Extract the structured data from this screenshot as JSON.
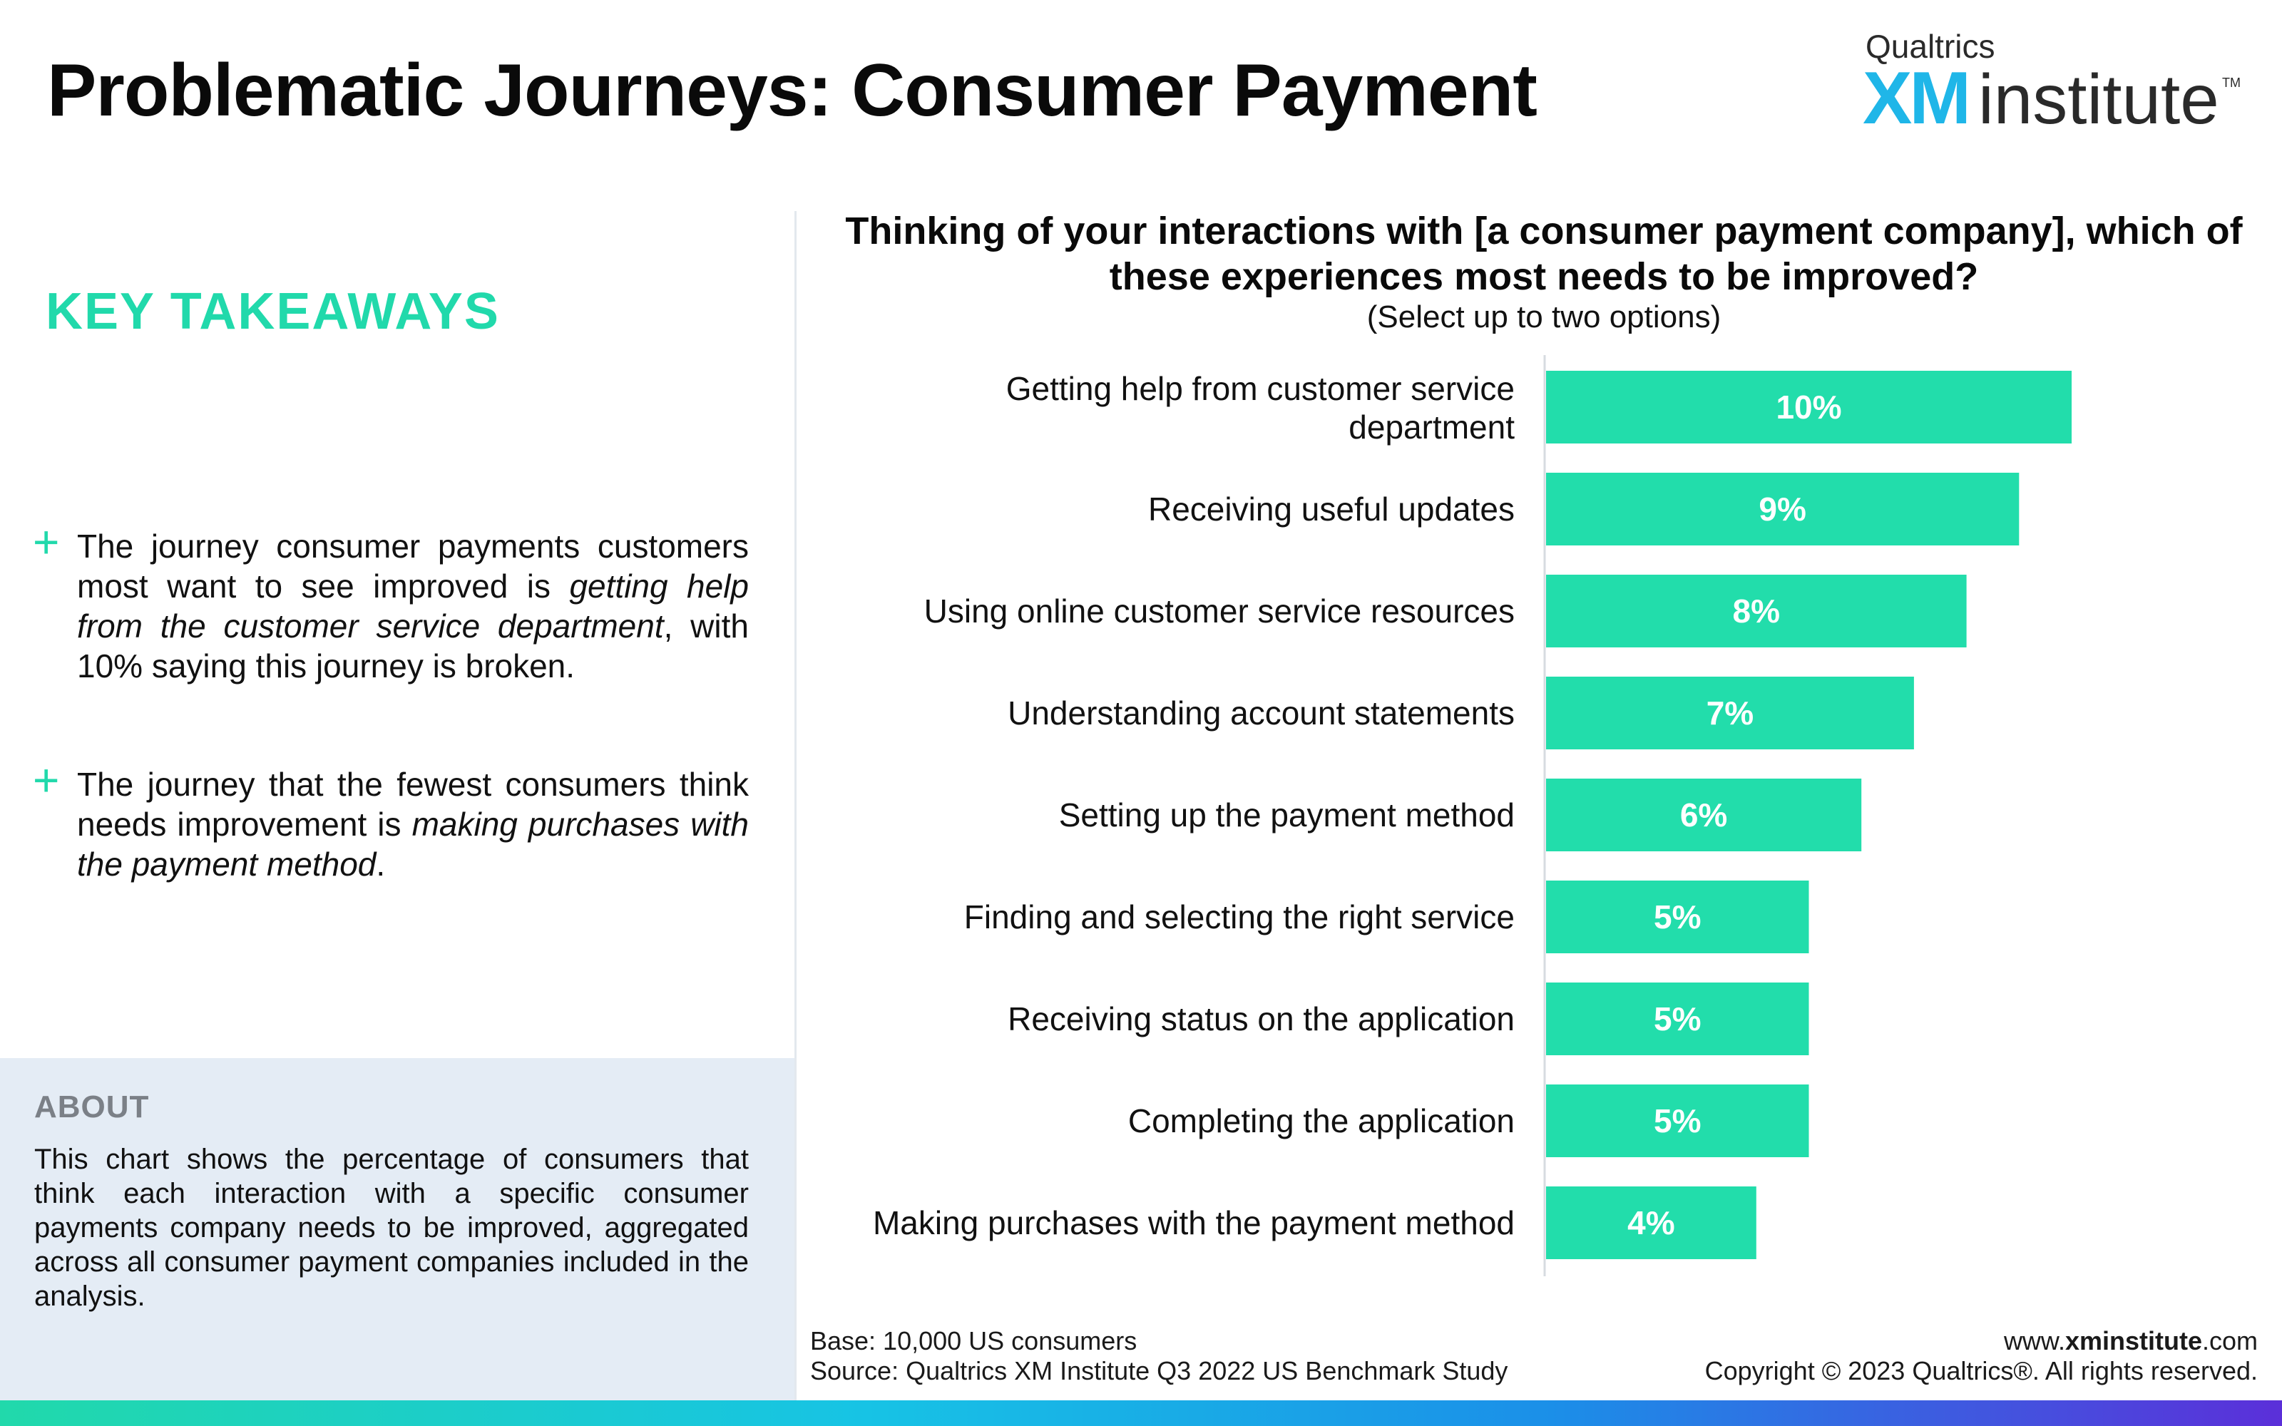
{
  "page": {
    "title": "Problematic Journeys: Consumer Payment"
  },
  "logo": {
    "top": "Qualtrics",
    "xm": "XM",
    "institute": "institute",
    "tm": "TM"
  },
  "takeaways": {
    "heading": "KEY TAKEAWAYS",
    "items": [
      {
        "pre": "The journey consumer payments customers most want to see improved is ",
        "emph": "getting help from the customer service department",
        "post": ", with 10% saying this journey is broken."
      },
      {
        "pre": "The journey that the fewest consumers think needs improvement is ",
        "emph": "making purchases with the payment method",
        "post": "."
      }
    ]
  },
  "about": {
    "heading": "ABOUT",
    "text": "This chart shows the percentage of consumers that think each interaction with a specific consumer payments company needs to be improved, aggregated across all consumer payment companies included in the analysis."
  },
  "footer": {
    "base": "Base: 10,000 US consumers",
    "source": "Source: Qualtrics XM Institute Q3 2022 US Benchmark Study",
    "url_prefix": "www.",
    "url_bold": "xminstitute",
    "url_suffix": ".com",
    "copyright": "Copyright © 2023 Qualtrics®. All rights reserved."
  },
  "chart_data": {
    "type": "bar",
    "orientation": "horizontal",
    "title": "Thinking of your interactions with [a consumer payment company], which of these experiences most needs to be improved?",
    "subtitle": "(Select up to two options)",
    "categories": [
      "Getting help from customer service department",
      "Receiving useful updates",
      "Using online customer service resources",
      "Understanding account statements",
      "Setting up the payment method",
      "Finding and selecting the right service",
      "Receiving status on the application",
      "Completing the application",
      "Making purchases with the payment method"
    ],
    "values": [
      10,
      9,
      8,
      7,
      6,
      5,
      5,
      5,
      4
    ],
    "data_labels": [
      "10%",
      "9%",
      "8%",
      "7%",
      "6%",
      "5%",
      "5%",
      "5%",
      "4%"
    ],
    "unit": "%",
    "xlim": [
      0,
      10
    ],
    "bar_color": "#22ddab",
    "label_color": "#ffffff",
    "grid": false,
    "legend": "none"
  },
  "colors": {
    "accent": "#21d9ab",
    "about_bg": "#e4ecf5",
    "logo_blue": "#1fb6e8"
  }
}
